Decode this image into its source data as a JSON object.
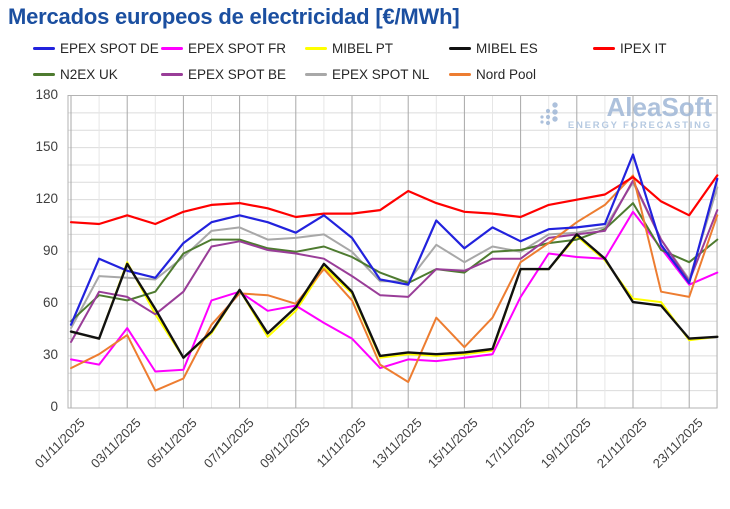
{
  "title": "Mercados europeos de electricidad [€/MWh]",
  "watermark": {
    "brand": "AleaSoft",
    "tagline": "ENERGY FORECASTING"
  },
  "y_axis": {
    "ticks": [
      0,
      30,
      60,
      90,
      120,
      150,
      180
    ],
    "minor_step": 10
  },
  "x_axis": {
    "tick_labels": [
      "01/11/2025",
      "03/11/2025",
      "05/11/2025",
      "07/11/2025",
      "09/11/2025",
      "11/11/2025",
      "13/11/2025",
      "15/11/2025",
      "17/11/2025",
      "19/11/2025",
      "21/11/2025",
      "23/11/2025"
    ]
  },
  "colors": {
    "title": "#1b4fa0",
    "axis_text": "#3f3f3f",
    "grid_minor": "#dcdcdc",
    "grid_day": "#e6e6e6",
    "grid_major": "#a8a8a8",
    "plot_border": "#b3b3b3",
    "watermark": "#9fb7d6",
    "watermark_tag": "#a9c0dc"
  },
  "chart_data": {
    "type": "line",
    "title": "Mercados europeos de electricidad [€/MWh]",
    "xlabel": "",
    "ylabel": "€/MWh",
    "ylim": [
      0,
      180
    ],
    "grid": "on",
    "legend_position": "top",
    "categories": [
      "01/11/2025",
      "02/11/2025",
      "03/11/2025",
      "04/11/2025",
      "05/11/2025",
      "06/11/2025",
      "07/11/2025",
      "08/11/2025",
      "09/11/2025",
      "10/11/2025",
      "11/11/2025",
      "12/11/2025",
      "13/11/2025",
      "14/11/2025",
      "15/11/2025",
      "16/11/2025",
      "17/11/2025",
      "18/11/2025",
      "19/11/2025",
      "20/11/2025",
      "21/11/2025",
      "22/11/2025",
      "23/11/2025",
      "24/11/2025"
    ],
    "series": [
      {
        "name": "EPEX SPOT DE",
        "color": "#2222dd",
        "width": 2.2,
        "values": [
          48,
          86,
          79,
          75,
          95,
          107,
          111,
          107,
          101,
          111,
          98,
          74,
          71,
          108,
          92,
          104,
          96,
          103,
          104,
          106,
          146,
          94,
          72,
          132
        ]
      },
      {
        "name": "EPEX SPOT FR",
        "color": "#ff00ff",
        "width": 2,
        "values": [
          28,
          25,
          46,
          21,
          22,
          62,
          67,
          56,
          59,
          49,
          40,
          23,
          28,
          27,
          29,
          31,
          64,
          89,
          87,
          86,
          113,
          92,
          71,
          78
        ]
      },
      {
        "name": "MIBEL PT",
        "color": "#ffff00",
        "width": 2,
        "values": [
          44,
          40,
          84,
          54,
          29,
          43,
          68,
          41,
          56,
          81,
          66,
          29,
          31,
          30,
          31,
          33,
          80,
          80,
          99,
          85,
          63,
          61,
          39,
          41
        ]
      },
      {
        "name": "MIBEL ES",
        "color": "#111111",
        "width": 2.4,
        "values": [
          44,
          40,
          83,
          57,
          29,
          44,
          68,
          43,
          58,
          83,
          67,
          30,
          32,
          31,
          32,
          34,
          80,
          80,
          100,
          86,
          61,
          59,
          40,
          41
        ]
      },
      {
        "name": "IPEX IT",
        "color": "#ff0000",
        "width": 2.2,
        "values": [
          107,
          106,
          111,
          106,
          113,
          117,
          118,
          115,
          110,
          112,
          112,
          114,
          125,
          118,
          113,
          112,
          110,
          117,
          120,
          123,
          133,
          119,
          111,
          134
        ]
      },
      {
        "name": "N2EX UK",
        "color": "#4e7b30",
        "width": 2,
        "values": [
          50,
          65,
          62,
          67,
          89,
          97,
          97,
          92,
          90,
          93,
          87,
          78,
          72,
          80,
          78,
          90,
          91,
          95,
          97,
          103,
          118,
          91,
          84,
          97
        ]
      },
      {
        "name": "EPEX SPOT BE",
        "color": "#993d98",
        "width": 2,
        "values": [
          38,
          67,
          64,
          54,
          67,
          93,
          96,
          91,
          89,
          86,
          76,
          65,
          64,
          80,
          79,
          86,
          86,
          98,
          100,
          102,
          131,
          97,
          73,
          114
        ]
      },
      {
        "name": "EPEX SPOT NL",
        "color": "#a8a8a8",
        "width": 2,
        "values": [
          46,
          76,
          75,
          74,
          87,
          102,
          104,
          97,
          98,
          100,
          90,
          73,
          73,
          94,
          84,
          93,
          90,
          100,
          101,
          104,
          130,
          97,
          74,
          127
        ]
      },
      {
        "name": "Nord Pool",
        "color": "#ed7d31",
        "width": 2,
        "values": [
          23,
          31,
          42,
          10,
          17,
          48,
          66,
          65,
          60,
          80,
          62,
          25,
          15,
          52,
          35,
          52,
          84,
          95,
          107,
          117,
          134,
          67,
          64,
          111
        ]
      }
    ],
    "paint_order": [
      "MIBEL PT",
      "EPEX SPOT FR",
      "EPEX SPOT NL",
      "N2EX UK",
      "EPEX SPOT BE",
      "Nord Pool",
      "IPEX IT",
      "EPEX SPOT DE",
      "MIBEL ES"
    ]
  }
}
